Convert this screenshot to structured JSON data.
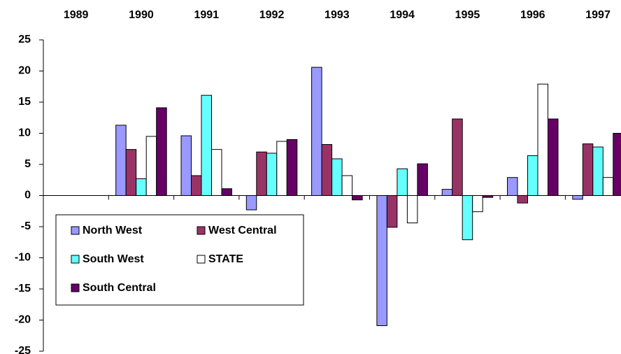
{
  "chart_data": {
    "type": "bar",
    "categories": [
      "1989",
      "1990",
      "1991",
      "1992",
      "1993",
      "1994",
      "1995",
      "1996",
      "1997"
    ],
    "series": [
      {
        "name": "North West",
        "color": "#9999ff",
        "values": [
          null,
          11.3,
          9.6,
          -2.3,
          20.6,
          -20.9,
          1.0,
          2.9,
          -0.6
        ]
      },
      {
        "name": "West Central",
        "color": "#993366",
        "values": [
          null,
          7.4,
          3.2,
          7.0,
          8.2,
          -5.1,
          12.3,
          -1.2,
          8.3
        ]
      },
      {
        "name": "South West",
        "color": "#66ffff",
        "values": [
          null,
          2.7,
          16.1,
          6.8,
          5.9,
          4.3,
          -7.1,
          6.4,
          7.8
        ]
      },
      {
        "name": "STATE",
        "color": "#ffffff",
        "values": [
          null,
          9.5,
          7.4,
          8.7,
          3.2,
          -4.4,
          -2.6,
          17.9,
          2.9
        ]
      },
      {
        "name": "South Central",
        "color": "#660066",
        "values": [
          null,
          14.1,
          1.1,
          9.0,
          -0.7,
          5.1,
          -0.3,
          12.3,
          10.0
        ]
      }
    ],
    "ylim": [
      -25,
      25
    ],
    "yticks": [
      -25,
      -20,
      -15,
      -10,
      -5,
      0,
      5,
      10,
      15,
      20,
      25
    ],
    "grid": false,
    "legend": "lower left"
  }
}
